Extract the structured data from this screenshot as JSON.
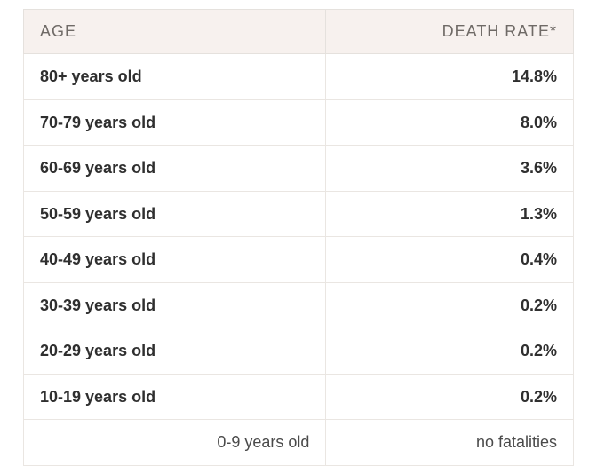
{
  "table": {
    "type": "table",
    "header_bg": "#f7f1ee",
    "header_text_color": "#6f6a66",
    "row_bg": "#ffffff",
    "row_text_color": "#2f2f2f",
    "border_color": "#e5e1dd",
    "font_family": "Arial",
    "header_fontsize_pt": 13,
    "cell_fontsize_pt": 13,
    "cell_font_weight": 700,
    "columns": [
      {
        "label": "AGE",
        "align": "left"
      },
      {
        "label": "DEATH RATE*",
        "align": "right"
      }
    ],
    "rows": [
      {
        "age": "80+ years old",
        "rate": "14.8%"
      },
      {
        "age": "70-79 years old",
        "rate": "8.0%"
      },
      {
        "age": "60-69 years old",
        "rate": "3.6%"
      },
      {
        "age": "50-59 years old",
        "rate": "1.3%"
      },
      {
        "age": "40-49 years old",
        "rate": "0.4%"
      },
      {
        "age": "30-39 years old",
        "rate": "0.2%"
      },
      {
        "age": "20-29 years old",
        "rate": "0.2%"
      },
      {
        "age": "10-19 years old",
        "rate": "0.2%"
      }
    ],
    "last_row": {
      "age": "0-9 years old",
      "rate": "no fatalities"
    }
  }
}
